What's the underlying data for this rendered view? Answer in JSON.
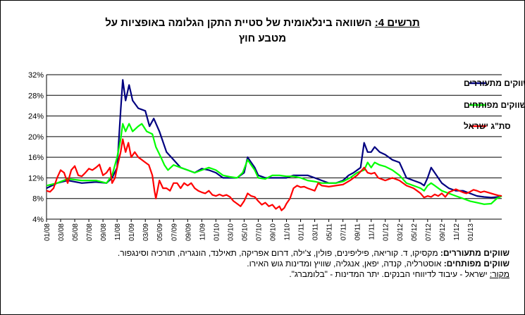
{
  "title": {
    "prefix": "תרשים 4:",
    "line1": " השוואה בינלאומית של סטיית התקן הגלומה באופציות על",
    "line2": "מטבע חוץ"
  },
  "chart_data": {
    "type": "line",
    "ylim": [
      4,
      32
    ],
    "yticks": [
      "4%",
      "8%",
      "12%",
      "16%",
      "20%",
      "24%",
      "28%",
      "32%"
    ],
    "ytick_values": [
      4,
      8,
      12,
      16,
      20,
      24,
      28,
      32
    ],
    "xticks": [
      "01/08",
      "03/08",
      "05/08",
      "07/08",
      "09/08",
      "11/08",
      "01/09",
      "03/09",
      "05/09",
      "07/09",
      "09/09",
      "11/09",
      "01/10",
      "03/10",
      "05/10",
      "07/10",
      "09/10",
      "11/10",
      "01/11",
      "03/11",
      "05/11",
      "07/11",
      "09/11",
      "11/11",
      "01/12",
      "03/12",
      "05/12",
      "07/12",
      "09/12",
      "11/12",
      "01/13"
    ],
    "grid": true,
    "legend_position": "top-right",
    "colors": {
      "emerging": "#000080",
      "developed": "#00ff00",
      "israel": "#ff0000"
    },
    "series": [
      {
        "name": "ממוצע שווקים מתעוררים",
        "points": [
          [
            0,
            10
          ],
          [
            1.5,
            11
          ],
          [
            3,
            11.5
          ],
          [
            5,
            11
          ],
          [
            7,
            11.2
          ],
          [
            8.5,
            11
          ],
          [
            9.3,
            12
          ],
          [
            10,
            14
          ],
          [
            10.5,
            25
          ],
          [
            10.8,
            31
          ],
          [
            11.2,
            27
          ],
          [
            11.7,
            30
          ],
          [
            12.2,
            27
          ],
          [
            13,
            25.5
          ],
          [
            14,
            25
          ],
          [
            14.6,
            22
          ],
          [
            15.2,
            23.5
          ],
          [
            16,
            21
          ],
          [
            17,
            17
          ],
          [
            18,
            15.5
          ],
          [
            19,
            14
          ],
          [
            20,
            13.5
          ],
          [
            21,
            13
          ],
          [
            22,
            13.8
          ],
          [
            23,
            13.5
          ],
          [
            24,
            13
          ],
          [
            25,
            12
          ],
          [
            26,
            12
          ],
          [
            27,
            12
          ],
          [
            28,
            13
          ],
          [
            28.5,
            16
          ],
          [
            29,
            15
          ],
          [
            29.5,
            14
          ],
          [
            30,
            12.5
          ],
          [
            31,
            12
          ],
          [
            32,
            12
          ],
          [
            33,
            12
          ],
          [
            34,
            12
          ],
          [
            35,
            12.5
          ],
          [
            36,
            12.5
          ],
          [
            37,
            12.5
          ],
          [
            38,
            12
          ],
          [
            39,
            11.5
          ],
          [
            40,
            11
          ],
          [
            41,
            11
          ],
          [
            42,
            11.5
          ],
          [
            42.8,
            12.5
          ],
          [
            43.5,
            13
          ],
          [
            44.5,
            14
          ],
          [
            45,
            18.8
          ],
          [
            45.5,
            17
          ],
          [
            46,
            17
          ],
          [
            46.5,
            18
          ],
          [
            47.2,
            17
          ],
          [
            48,
            16.5
          ],
          [
            49,
            15.5
          ],
          [
            50,
            15
          ],
          [
            51,
            12
          ],
          [
            52,
            11.5
          ],
          [
            53,
            11
          ],
          [
            53.5,
            10.5
          ],
          [
            54,
            12
          ],
          [
            54.5,
            14
          ],
          [
            55,
            13
          ],
          [
            56,
            11
          ],
          [
            57,
            10
          ],
          [
            58,
            9.5
          ],
          [
            59,
            9.5
          ],
          [
            60,
            9
          ],
          [
            61,
            8.5
          ],
          [
            62,
            8.3
          ],
          [
            63,
            8.2
          ],
          [
            64,
            8.3
          ],
          [
            64.5,
            8.5
          ]
        ]
      },
      {
        "name": "ממוצע שווקים מפותחים",
        "points": [
          [
            0,
            10.5
          ],
          [
            1.5,
            11
          ],
          [
            3,
            11.8
          ],
          [
            5,
            11.5
          ],
          [
            7,
            11.5
          ],
          [
            8.5,
            11
          ],
          [
            9.3,
            12.5
          ],
          [
            10,
            16
          ],
          [
            10.5,
            19.5
          ],
          [
            10.8,
            22.5
          ],
          [
            11.2,
            21
          ],
          [
            11.7,
            22.5
          ],
          [
            12.2,
            21
          ],
          [
            13,
            22
          ],
          [
            13.5,
            22.5
          ],
          [
            14.2,
            21
          ],
          [
            15,
            20.5
          ],
          [
            15.5,
            18
          ],
          [
            16.2,
            16
          ],
          [
            16.7,
            14.5
          ],
          [
            17.2,
            13.5
          ],
          [
            18,
            14.5
          ],
          [
            19,
            14
          ],
          [
            20,
            13.5
          ],
          [
            21,
            13
          ],
          [
            22,
            13.5
          ],
          [
            23,
            14
          ],
          [
            24,
            13.5
          ],
          [
            25,
            12.5
          ],
          [
            26,
            12.2
          ],
          [
            27,
            12
          ],
          [
            27.8,
            13
          ],
          [
            28.5,
            15.5
          ],
          [
            29,
            14.5
          ],
          [
            29.5,
            13.5
          ],
          [
            30,
            12
          ],
          [
            31,
            11.8
          ],
          [
            32,
            12.5
          ],
          [
            33,
            12.5
          ],
          [
            34,
            12.3
          ],
          [
            35,
            12.3
          ],
          [
            36,
            12
          ],
          [
            37,
            11.5
          ],
          [
            38,
            11.3
          ],
          [
            39,
            11
          ],
          [
            40,
            11
          ],
          [
            41,
            11
          ],
          [
            42,
            11.3
          ],
          [
            43,
            12
          ],
          [
            44,
            13
          ],
          [
            45,
            13.5
          ],
          [
            45.5,
            15
          ],
          [
            46,
            14
          ],
          [
            46.5,
            15
          ],
          [
            47.2,
            14.5
          ],
          [
            48,
            14.2
          ],
          [
            49,
            13.5
          ],
          [
            50,
            12.5
          ],
          [
            51,
            11
          ],
          [
            52,
            10.5
          ],
          [
            53,
            10
          ],
          [
            53.5,
            9.5
          ],
          [
            54,
            10.5
          ],
          [
            54.5,
            11
          ],
          [
            55,
            10.5
          ],
          [
            56,
            9.5
          ],
          [
            57,
            9
          ],
          [
            58,
            8.5
          ],
          [
            59,
            8
          ],
          [
            60,
            7.5
          ],
          [
            61,
            7.2
          ],
          [
            62,
            6.9
          ],
          [
            63,
            7
          ],
          [
            63.8,
            8
          ],
          [
            64.5,
            8.5
          ]
        ]
      },
      {
        "name": "סת\"ג ישראל",
        "points": [
          [
            0,
            9.5
          ],
          [
            0.5,
            9.3
          ],
          [
            1,
            10
          ],
          [
            1.5,
            12
          ],
          [
            2,
            13.5
          ],
          [
            2.5,
            13
          ],
          [
            3,
            11
          ],
          [
            3.5,
            13.5
          ],
          [
            4,
            14.3
          ],
          [
            4.5,
            12.5
          ],
          [
            5,
            12.3
          ],
          [
            5.5,
            13
          ],
          [
            6,
            13.8
          ],
          [
            6.5,
            13.5
          ],
          [
            7,
            14
          ],
          [
            7.5,
            14.6
          ],
          [
            8,
            12.5
          ],
          [
            8.5,
            13
          ],
          [
            9,
            14
          ],
          [
            9.3,
            11
          ],
          [
            9.7,
            12
          ],
          [
            10,
            14
          ],
          [
            10.5,
            17
          ],
          [
            10.8,
            19.5
          ],
          [
            11.2,
            17
          ],
          [
            11.6,
            18.8
          ],
          [
            12,
            16
          ],
          [
            12.5,
            17
          ],
          [
            13,
            16
          ],
          [
            13.5,
            15.5
          ],
          [
            14,
            15
          ],
          [
            14.5,
            14.5
          ],
          [
            15,
            12.5
          ],
          [
            15.3,
            9.5
          ],
          [
            15.5,
            8
          ],
          [
            16,
            11.5
          ],
          [
            16.5,
            10
          ],
          [
            17,
            10
          ],
          [
            17.5,
            9.5
          ],
          [
            18,
            11
          ],
          [
            18.5,
            11
          ],
          [
            19,
            10
          ],
          [
            19.5,
            11
          ],
          [
            20,
            10.5
          ],
          [
            20.5,
            11
          ],
          [
            21,
            10
          ],
          [
            21.5,
            9.5
          ],
          [
            22,
            9.2
          ],
          [
            22.5,
            9
          ],
          [
            23,
            9.5
          ],
          [
            23.5,
            8.7
          ],
          [
            24,
            8.5
          ],
          [
            24.5,
            8.8
          ],
          [
            25,
            8.5
          ],
          [
            25.5,
            8.7
          ],
          [
            26,
            8.3
          ],
          [
            26.5,
            7.5
          ],
          [
            27,
            7
          ],
          [
            27.5,
            6.5
          ],
          [
            28,
            7.5
          ],
          [
            28.5,
            9
          ],
          [
            29,
            8.5
          ],
          [
            29.5,
            8.3
          ],
          [
            30,
            7.5
          ],
          [
            30.5,
            6.8
          ],
          [
            31,
            7.2
          ],
          [
            31.5,
            6.5
          ],
          [
            32,
            6.8
          ],
          [
            32.5,
            6
          ],
          [
            33,
            6.5
          ],
          [
            33.3,
            5.7
          ],
          [
            33.7,
            6.2
          ],
          [
            34,
            7
          ],
          [
            34.5,
            8
          ],
          [
            35,
            10
          ],
          [
            35.5,
            10.5
          ],
          [
            36,
            10.2
          ],
          [
            36.5,
            10.3
          ],
          [
            37,
            10
          ],
          [
            38,
            9.5
          ],
          [
            38.5,
            11
          ],
          [
            39,
            10.5
          ],
          [
            40,
            10.3
          ],
          [
            41,
            10.5
          ],
          [
            42,
            10.7
          ],
          [
            43,
            11.5
          ],
          [
            44,
            12.5
          ],
          [
            44.7,
            13.5
          ],
          [
            45,
            14
          ],
          [
            45.5,
            13
          ],
          [
            46,
            12.8
          ],
          [
            46.5,
            13
          ],
          [
            47,
            12
          ],
          [
            48,
            11.5
          ],
          [
            49,
            12
          ],
          [
            50,
            11.5
          ],
          [
            51,
            10.5
          ],
          [
            52,
            10
          ],
          [
            52.5,
            9.5
          ],
          [
            53,
            9
          ],
          [
            53.5,
            8.2
          ],
          [
            54,
            8.5
          ],
          [
            54.5,
            8.3
          ],
          [
            55,
            8.8
          ],
          [
            55.5,
            8.5
          ],
          [
            56,
            9
          ],
          [
            56.5,
            8.3
          ],
          [
            57,
            9.2
          ],
          [
            57.5,
            9.5
          ],
          [
            58,
            9.8
          ],
          [
            58.5,
            9.5
          ],
          [
            59,
            9.2
          ],
          [
            59.5,
            9
          ],
          [
            60,
            9.3
          ],
          [
            60.5,
            9.7
          ],
          [
            61,
            9.5
          ],
          [
            61.5,
            9.2
          ],
          [
            62,
            9.4
          ],
          [
            62.5,
            9.2
          ],
          [
            63,
            9
          ],
          [
            63.5,
            8.8
          ],
          [
            64,
            8.6
          ],
          [
            64.5,
            8.5
          ]
        ]
      }
    ]
  },
  "notes": {
    "emerging_label": "שווקים מתעוררים:",
    "emerging_text": " מקסיקו, ד. קוריאה, פיליפינים, פולין, צ'ילה, דרום אפריקה, תאילנד, הונגריה, תורכיה וסינגפור.",
    "developed_label": "שווקים מפותחים:",
    "developed_text": " אוסטרליה, קנדה, יפאן, אנגליה, שוויץ ומדינות גוש האירו.",
    "source_label": "מקור:",
    "source_text": " ישראל - עיבוד לדיווחי הבנקים. יתר המדינות - \"בלומברג\"."
  }
}
